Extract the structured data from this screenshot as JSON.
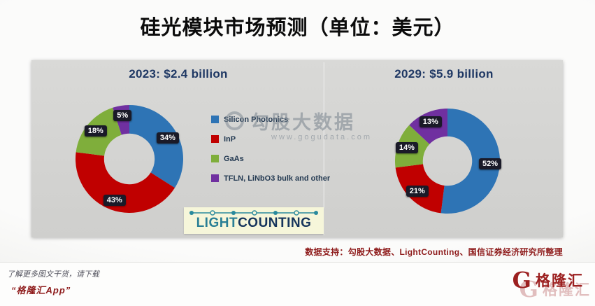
{
  "title": "硅光模块市场预测（单位：美元）",
  "chart_data": [
    {
      "type": "pie",
      "donut": true,
      "title": "2023: $2.4 billion",
      "categories": [
        "Silicon Photonics",
        "InP",
        "GaAs",
        "TFLN, LiNbO3 bulk and other"
      ],
      "values": [
        34,
        43,
        18,
        5
      ],
      "value_labels": [
        "34%",
        "43%",
        "18%",
        "5%"
      ],
      "colors": [
        "#2e74b5",
        "#c00000",
        "#7fae3b",
        "#7030a0"
      ],
      "legend_position": "center-between-charts"
    },
    {
      "type": "pie",
      "donut": true,
      "title": "2029: $5.9 billion",
      "categories": [
        "Silicon Photonics",
        "InP",
        "GaAs",
        "TFLN, LiNbO3 bulk and other"
      ],
      "values": [
        52,
        21,
        14,
        13
      ],
      "value_labels": [
        "52%",
        "21%",
        "14%",
        "13%"
      ],
      "colors": [
        "#2e74b5",
        "#c00000",
        "#7fae3b",
        "#7030a0"
      ],
      "legend_position": "center-between-charts"
    }
  ],
  "legend": {
    "items": [
      {
        "label": "Silicon Photonics",
        "color": "#2e74b5"
      },
      {
        "label": "InP",
        "color": "#c00000"
      },
      {
        "label": "GaAs",
        "color": "#7fae3b"
      },
      {
        "label": "TFLN, LiNbO3 bulk and other",
        "color": "#7030a0"
      }
    ]
  },
  "watermark": {
    "brand": "勾股大数据",
    "url": "www.gogudata.com"
  },
  "lightcounting": {
    "part1": "LIGHT",
    "part2": "COUNTING"
  },
  "source_note": "数据支持：勾股大数据、LightCounting、国信证券经济研究所整理",
  "footer": {
    "line1": "了解更多图文干货，请下载",
    "line2": "“格隆汇App”"
  },
  "brand": {
    "g": "G",
    "name": "格隆汇"
  }
}
